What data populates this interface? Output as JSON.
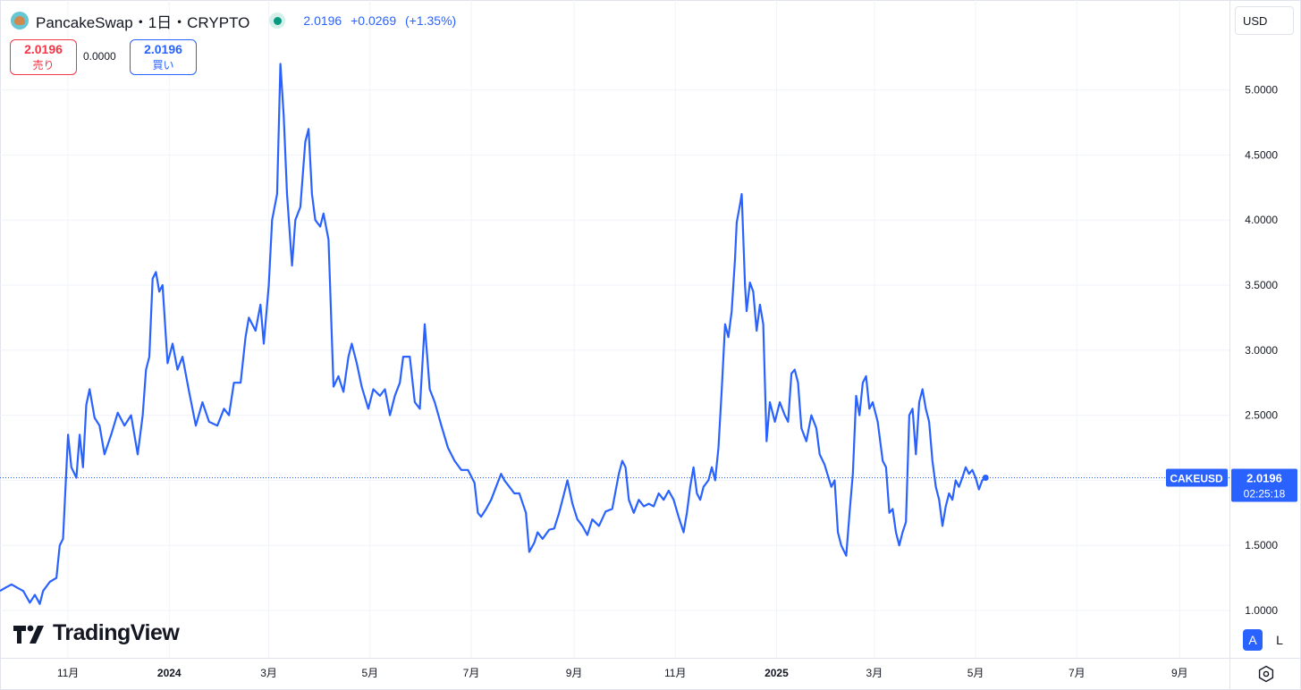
{
  "header": {
    "symbol_name": "PancakeSwap",
    "separator": "・",
    "interval": "1日",
    "exchange": "CRYPTO",
    "last_price": "2.0196",
    "change": "+0.0269",
    "change_pct": "(+1.35%)"
  },
  "order_panel": {
    "sell_price": "2.0196",
    "sell_label": "売り",
    "spread": "0.0000",
    "buy_price": "2.0196",
    "buy_label": "買い"
  },
  "currency_button": "USD",
  "price_tag": {
    "symbol": "CAKEUSD",
    "price": "2.0196",
    "countdown": "02:25:18"
  },
  "watermark": "TradingView",
  "buttons": {
    "auto": "A",
    "log": "L"
  },
  "icons": {
    "settings": "gear-icon",
    "logo": "pancakeswap-logo-icon",
    "live": "market-open-dot-icon"
  },
  "colors": {
    "line": "#2962ff",
    "sell": "#f23645",
    "buy": "#2962ff",
    "live": "#089981",
    "grid": "#f0f3fa"
  },
  "chart_data": {
    "type": "line",
    "title": "PancakeSwap・1日・CRYPTO",
    "series": [
      {
        "name": "CAKEUSD",
        "points": [
          [
            "2023-09-21",
            1.15
          ],
          [
            "2023-09-25",
            1.18
          ],
          [
            "2023-09-28",
            1.2
          ],
          [
            "2023-10-02",
            1.17
          ],
          [
            "2023-10-05",
            1.15
          ],
          [
            "2023-10-09",
            1.06
          ],
          [
            "2023-10-12",
            1.12
          ],
          [
            "2023-10-15",
            1.05
          ],
          [
            "2023-10-17",
            1.15
          ],
          [
            "2023-10-21",
            1.22
          ],
          [
            "2023-10-25",
            1.25
          ],
          [
            "2023-10-27",
            1.5
          ],
          [
            "2023-10-29",
            1.55
          ],
          [
            "2023-11-01",
            2.35
          ],
          [
            "2023-11-03",
            2.1
          ],
          [
            "2023-11-06",
            2.02
          ],
          [
            "2023-11-08",
            2.35
          ],
          [
            "2023-11-10",
            2.1
          ],
          [
            "2023-11-12",
            2.58
          ],
          [
            "2023-11-14",
            2.7
          ],
          [
            "2023-11-17",
            2.48
          ],
          [
            "2023-11-20",
            2.42
          ],
          [
            "2023-11-23",
            2.2
          ],
          [
            "2023-11-27",
            2.35
          ],
          [
            "2023-12-01",
            2.52
          ],
          [
            "2023-12-05",
            2.42
          ],
          [
            "2023-12-09",
            2.5
          ],
          [
            "2023-12-13",
            2.2
          ],
          [
            "2023-12-16",
            2.5
          ],
          [
            "2023-12-18",
            2.85
          ],
          [
            "2023-12-20",
            2.95
          ],
          [
            "2023-12-22",
            3.55
          ],
          [
            "2023-12-24",
            3.6
          ],
          [
            "2023-12-26",
            3.45
          ],
          [
            "2023-12-28",
            3.5
          ],
          [
            "2023-12-31",
            2.9
          ],
          [
            "2024-01-03",
            3.05
          ],
          [
            "2024-01-06",
            2.85
          ],
          [
            "2024-01-09",
            2.95
          ],
          [
            "2024-01-13",
            2.68
          ],
          [
            "2024-01-17",
            2.42
          ],
          [
            "2024-01-21",
            2.6
          ],
          [
            "2024-01-25",
            2.45
          ],
          [
            "2024-01-30",
            2.42
          ],
          [
            "2024-02-03",
            2.55
          ],
          [
            "2024-02-06",
            2.5
          ],
          [
            "2024-02-09",
            2.75
          ],
          [
            "2024-02-13",
            2.75
          ],
          [
            "2024-02-16",
            3.1
          ],
          [
            "2024-02-18",
            3.25
          ],
          [
            "2024-02-22",
            3.15
          ],
          [
            "2024-02-25",
            3.35
          ],
          [
            "2024-02-27",
            3.05
          ],
          [
            "2024-03-01",
            3.5
          ],
          [
            "2024-03-03",
            4.0
          ],
          [
            "2024-03-06",
            4.2
          ],
          [
            "2024-03-08",
            5.2
          ],
          [
            "2024-03-10",
            4.8
          ],
          [
            "2024-03-12",
            4.2
          ],
          [
            "2024-03-15",
            3.65
          ],
          [
            "2024-03-17",
            4.0
          ],
          [
            "2024-03-20",
            4.1
          ],
          [
            "2024-03-23",
            4.6
          ],
          [
            "2024-03-25",
            4.7
          ],
          [
            "2024-03-27",
            4.2
          ],
          [
            "2024-03-29",
            4.0
          ],
          [
            "2024-04-01",
            3.95
          ],
          [
            "2024-04-03",
            4.05
          ],
          [
            "2024-04-06",
            3.85
          ],
          [
            "2024-04-09",
            2.72
          ],
          [
            "2024-04-12",
            2.8
          ],
          [
            "2024-04-15",
            2.68
          ],
          [
            "2024-04-18",
            2.95
          ],
          [
            "2024-04-20",
            3.05
          ],
          [
            "2024-04-23",
            2.9
          ],
          [
            "2024-04-26",
            2.72
          ],
          [
            "2024-04-30",
            2.55
          ],
          [
            "2024-05-03",
            2.7
          ],
          [
            "2024-05-07",
            2.65
          ],
          [
            "2024-05-10",
            2.7
          ],
          [
            "2024-05-13",
            2.5
          ],
          [
            "2024-05-16",
            2.65
          ],
          [
            "2024-05-19",
            2.75
          ],
          [
            "2024-05-21",
            2.95
          ],
          [
            "2024-05-25",
            2.95
          ],
          [
            "2024-05-28",
            2.6
          ],
          [
            "2024-05-31",
            2.55
          ],
          [
            "2024-06-03",
            3.2
          ],
          [
            "2024-06-06",
            2.7
          ],
          [
            "2024-06-09",
            2.6
          ],
          [
            "2024-06-13",
            2.42
          ],
          [
            "2024-06-17",
            2.25
          ],
          [
            "2024-06-21",
            2.15
          ],
          [
            "2024-06-25",
            2.08
          ],
          [
            "2024-06-29",
            2.08
          ],
          [
            "2024-07-03",
            1.98
          ],
          [
            "2024-07-05",
            1.75
          ],
          [
            "2024-07-07",
            1.72
          ],
          [
            "2024-07-10",
            1.78
          ],
          [
            "2024-07-13",
            1.85
          ],
          [
            "2024-07-16",
            1.95
          ],
          [
            "2024-07-19",
            2.05
          ],
          [
            "2024-07-21",
            2.0
          ],
          [
            "2024-07-24",
            1.95
          ],
          [
            "2024-07-27",
            1.9
          ],
          [
            "2024-07-30",
            1.9
          ],
          [
            "2024-08-03",
            1.75
          ],
          [
            "2024-08-05",
            1.45
          ],
          [
            "2024-08-08",
            1.52
          ],
          [
            "2024-08-10",
            1.6
          ],
          [
            "2024-08-13",
            1.55
          ],
          [
            "2024-08-17",
            1.62
          ],
          [
            "2024-08-20",
            1.63
          ],
          [
            "2024-08-23",
            1.75
          ],
          [
            "2024-08-26",
            1.9
          ],
          [
            "2024-08-28",
            2.0
          ],
          [
            "2024-08-31",
            1.82
          ],
          [
            "2024-09-03",
            1.7
          ],
          [
            "2024-09-06",
            1.65
          ],
          [
            "2024-09-09",
            1.58
          ],
          [
            "2024-09-12",
            1.7
          ],
          [
            "2024-09-16",
            1.65
          ],
          [
            "2024-09-20",
            1.76
          ],
          [
            "2024-09-24",
            1.78
          ],
          [
            "2024-09-28",
            2.05
          ],
          [
            "2024-09-30",
            2.15
          ],
          [
            "2024-10-02",
            2.1
          ],
          [
            "2024-10-04",
            1.85
          ],
          [
            "2024-10-07",
            1.75
          ],
          [
            "2024-10-10",
            1.85
          ],
          [
            "2024-10-13",
            1.8
          ],
          [
            "2024-10-16",
            1.82
          ],
          [
            "2024-10-19",
            1.8
          ],
          [
            "2024-10-22",
            1.9
          ],
          [
            "2024-10-25",
            1.85
          ],
          [
            "2024-10-28",
            1.92
          ],
          [
            "2024-10-31",
            1.85
          ],
          [
            "2024-11-03",
            1.72
          ],
          [
            "2024-11-06",
            1.6
          ],
          [
            "2024-11-08",
            1.75
          ],
          [
            "2024-11-10",
            1.95
          ],
          [
            "2024-11-12",
            2.1
          ],
          [
            "2024-11-14",
            1.9
          ],
          [
            "2024-11-16",
            1.85
          ],
          [
            "2024-11-18",
            1.95
          ],
          [
            "2024-11-21",
            2.0
          ],
          [
            "2024-11-23",
            2.1
          ],
          [
            "2024-11-25",
            2.0
          ],
          [
            "2024-11-27",
            2.25
          ],
          [
            "2024-11-29",
            2.7
          ],
          [
            "2024-12-01",
            3.2
          ],
          [
            "2024-12-03",
            3.1
          ],
          [
            "2024-12-05",
            3.3
          ],
          [
            "2024-12-07",
            3.7
          ],
          [
            "2024-12-08",
            3.98
          ],
          [
            "2024-12-10",
            4.12
          ],
          [
            "2024-12-11",
            4.2
          ],
          [
            "2024-12-13",
            3.5
          ],
          [
            "2024-12-14",
            3.3
          ],
          [
            "2024-12-16",
            3.52
          ],
          [
            "2024-12-18",
            3.45
          ],
          [
            "2024-12-20",
            3.15
          ],
          [
            "2024-12-22",
            3.35
          ],
          [
            "2024-12-24",
            3.2
          ],
          [
            "2024-12-26",
            2.3
          ],
          [
            "2024-12-28",
            2.6
          ],
          [
            "2024-12-31",
            2.45
          ],
          [
            "2025-01-03",
            2.6
          ],
          [
            "2025-01-06",
            2.5
          ],
          [
            "2025-01-08",
            2.45
          ],
          [
            "2025-01-10",
            2.82
          ],
          [
            "2025-01-12",
            2.85
          ],
          [
            "2025-01-14",
            2.75
          ],
          [
            "2025-01-16",
            2.4
          ],
          [
            "2025-01-19",
            2.3
          ],
          [
            "2025-01-22",
            2.5
          ],
          [
            "2025-01-25",
            2.4
          ],
          [
            "2025-01-27",
            2.2
          ],
          [
            "2025-01-30",
            2.12
          ],
          [
            "2025-02-03",
            1.95
          ],
          [
            "2025-02-05",
            2.0
          ],
          [
            "2025-02-07",
            1.6
          ],
          [
            "2025-02-09",
            1.5
          ],
          [
            "2025-02-12",
            1.42
          ],
          [
            "2025-02-14",
            1.75
          ],
          [
            "2025-02-16",
            2.05
          ],
          [
            "2025-02-18",
            2.65
          ],
          [
            "2025-02-20",
            2.5
          ],
          [
            "2025-02-22",
            2.75
          ],
          [
            "2025-02-24",
            2.8
          ],
          [
            "2025-02-26",
            2.55
          ],
          [
            "2025-02-28",
            2.6
          ],
          [
            "2025-03-03",
            2.45
          ],
          [
            "2025-03-06",
            2.15
          ],
          [
            "2025-03-08",
            2.1
          ],
          [
            "2025-03-10",
            1.75
          ],
          [
            "2025-03-12",
            1.78
          ],
          [
            "2025-03-14",
            1.6
          ],
          [
            "2025-03-16",
            1.5
          ],
          [
            "2025-03-18",
            1.6
          ],
          [
            "2025-03-20",
            1.68
          ],
          [
            "2025-03-22",
            2.5
          ],
          [
            "2025-03-24",
            2.55
          ],
          [
            "2025-03-26",
            2.2
          ],
          [
            "2025-03-28",
            2.6
          ],
          [
            "2025-03-30",
            2.7
          ],
          [
            "2025-04-01",
            2.55
          ],
          [
            "2025-04-03",
            2.45
          ],
          [
            "2025-04-05",
            2.15
          ],
          [
            "2025-04-07",
            1.95
          ],
          [
            "2025-04-09",
            1.85
          ],
          [
            "2025-04-11",
            1.65
          ],
          [
            "2025-04-13",
            1.8
          ],
          [
            "2025-04-15",
            1.9
          ],
          [
            "2025-04-17",
            1.85
          ],
          [
            "2025-04-19",
            2.0
          ],
          [
            "2025-04-21",
            1.95
          ],
          [
            "2025-04-23",
            2.02
          ],
          [
            "2025-04-25",
            2.1
          ],
          [
            "2025-04-27",
            2.05
          ],
          [
            "2025-04-29",
            2.08
          ],
          [
            "2025-05-01",
            2.02
          ],
          [
            "2025-05-03",
            1.93
          ],
          [
            "2025-05-05",
            2.0
          ],
          [
            "2025-05-07",
            2.02
          ]
        ]
      }
    ],
    "current_price": 2.0196,
    "x_ticks": [
      {
        "date": "2023-11-01",
        "label": "11月",
        "bold": false
      },
      {
        "date": "2024-01-01",
        "label": "2024",
        "bold": true
      },
      {
        "date": "2024-03-01",
        "label": "3月",
        "bold": false
      },
      {
        "date": "2024-05-01",
        "label": "5月",
        "bold": false
      },
      {
        "date": "2024-07-01",
        "label": "7月",
        "bold": false
      },
      {
        "date": "2024-09-01",
        "label": "9月",
        "bold": false
      },
      {
        "date": "2024-11-01",
        "label": "11月",
        "bold": false
      },
      {
        "date": "2025-01-01",
        "label": "2025",
        "bold": true
      },
      {
        "date": "2025-03-01",
        "label": "3月",
        "bold": false
      },
      {
        "date": "2025-05-01",
        "label": "5月",
        "bold": false
      },
      {
        "date": "2025-07-01",
        "label": "7月",
        "bold": false
      },
      {
        "date": "2025-09-01",
        "label": "9月",
        "bold": false
      }
    ],
    "y_ticks": [
      "1.0000",
      "1.5000",
      "2.5000",
      "3.0000",
      "3.5000",
      "4.0000",
      "4.5000",
      "5.0000"
    ],
    "grid": true
  }
}
